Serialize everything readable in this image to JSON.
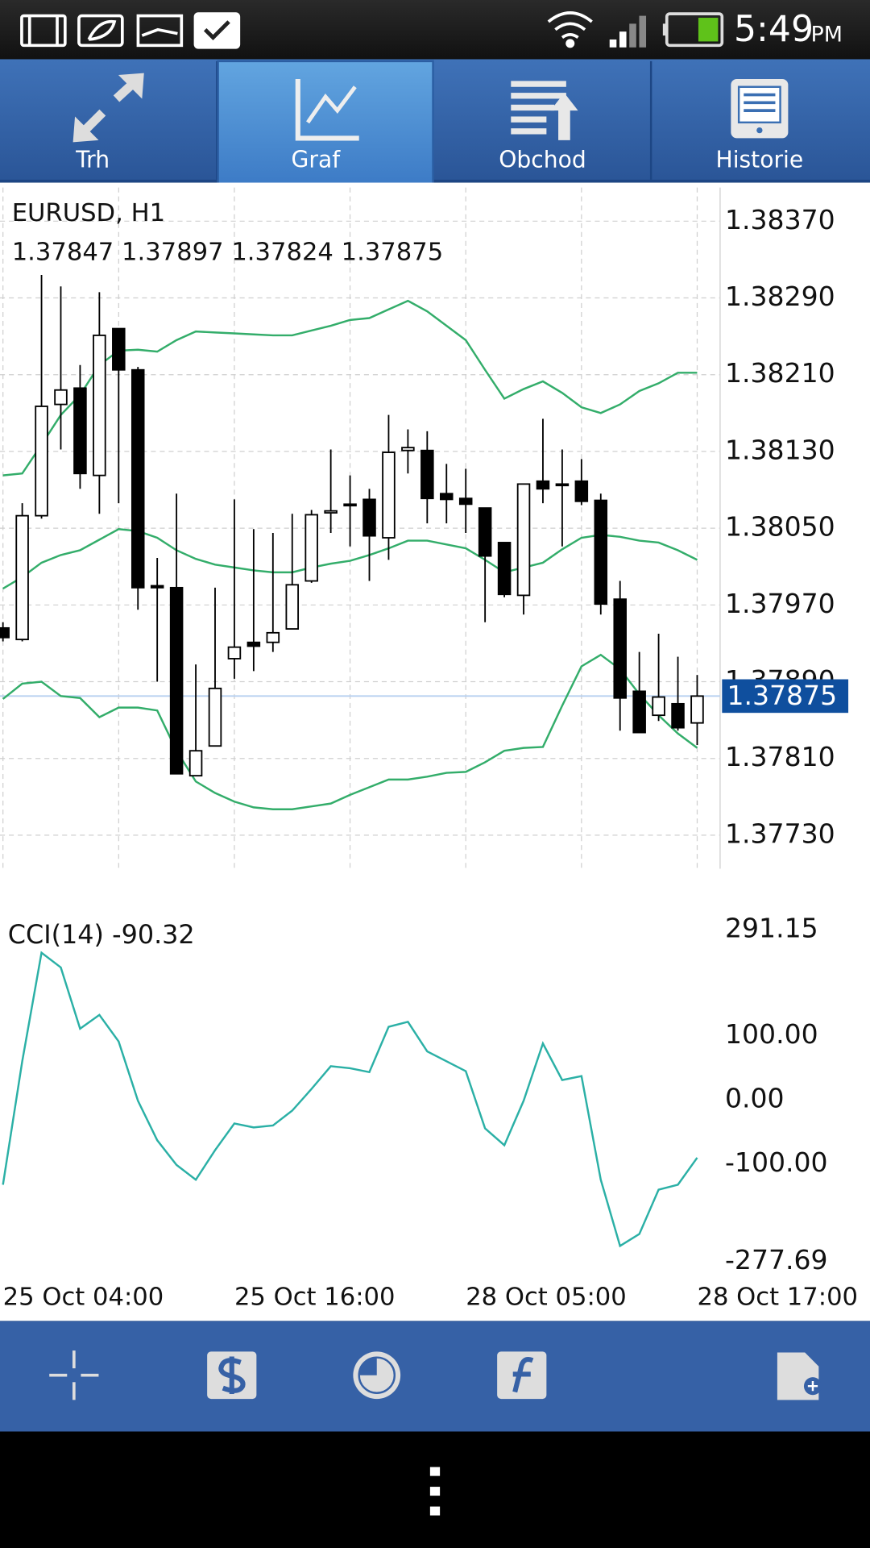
{
  "status_bar": {
    "time": "5:49",
    "ampm": "PM"
  },
  "tabs": [
    "Trh",
    "Graf",
    "Obchod",
    "Historie"
  ],
  "chart_data": [
    {
      "type": "candlestick",
      "title": "EURUSD, H1",
      "categories": [
        "25 Oct 04:00",
        null,
        null,
        null,
        null,
        null,
        null,
        null,
        null,
        null,
        null,
        null,
        "25 Oct 16:00",
        null,
        null,
        null,
        null,
        null,
        null,
        null,
        null,
        null,
        null,
        null,
        "28 Oct 05:00",
        null,
        null,
        null,
        null,
        null,
        null,
        null,
        null,
        null,
        null,
        null,
        "28 Oct 17:00"
      ],
      "open": [
        1.37946,
        1.37934,
        1.38063,
        1.38179,
        1.38196,
        1.38105,
        1.38258,
        1.38215,
        1.3799,
        1.37988,
        1.37792,
        1.37823,
        1.37914,
        1.37931,
        1.37931,
        1.37945,
        1.37995,
        1.38066,
        1.38074,
        1.3808,
        1.3804,
        1.38131,
        1.38131,
        1.38086,
        1.38081,
        1.38071,
        1.38035,
        1.3798,
        1.38099,
        1.38096,
        1.38099,
        1.38079,
        1.37976,
        1.3788,
        1.37855,
        1.37867,
        1.37847
      ],
      "high": [
        1.37952,
        1.38076,
        1.38314,
        1.38302,
        1.3822,
        1.38296,
        1.38258,
        1.38218,
        1.38019,
        1.38086,
        1.37908,
        1.37988,
        1.3808,
        1.38049,
        1.38045,
        1.38065,
        1.38069,
        1.38132,
        1.38105,
        1.38091,
        1.38168,
        1.38153,
        1.38151,
        1.38117,
        1.38112,
        1.38071,
        1.38035,
        1.38096,
        1.38164,
        1.38132,
        1.38122,
        1.38086,
        1.37995,
        1.37921,
        1.3794,
        1.37916,
        1.37897
      ],
      "low": [
        1.37932,
        1.37932,
        1.3806,
        1.38132,
        1.38091,
        1.38065,
        1.38076,
        1.37965,
        1.3789,
        1.37794,
        1.37792,
        1.37823,
        1.37893,
        1.37901,
        1.37921,
        1.37945,
        1.37993,
        1.38045,
        1.38031,
        1.37995,
        1.38017,
        1.38107,
        1.38055,
        1.38055,
        1.38045,
        1.37952,
        1.37978,
        1.3796,
        1.38076,
        1.38031,
        1.38074,
        1.3796,
        1.37839,
        1.37837,
        1.37849,
        1.37839,
        1.37824
      ],
      "close": [
        1.37936,
        1.38063,
        1.38177,
        1.38194,
        1.38107,
        1.38251,
        1.38215,
        1.37988,
        1.37988,
        1.37794,
        1.37818,
        1.37883,
        1.37926,
        1.37927,
        1.37941,
        1.37991,
        1.38064,
        1.38068,
        1.38075,
        1.38042,
        1.38129,
        1.38134,
        1.38081,
        1.3808,
        1.38075,
        1.38021,
        1.37981,
        1.38096,
        1.38091,
        1.38095,
        1.38078,
        1.37971,
        1.37873,
        1.37837,
        1.37874,
        1.37842,
        1.37875
      ],
      "up_color": "#ffffff",
      "down_color": "#000000",
      "bands": {
        "color": "#33ad6a",
        "upper": [
          1.38105,
          1.38107,
          1.38137,
          1.38168,
          1.38189,
          1.3822,
          1.38235,
          1.38236,
          1.38234,
          1.38246,
          1.38255,
          1.38254,
          1.38253,
          1.38252,
          1.38251,
          1.38251,
          1.38256,
          1.38261,
          1.38267,
          1.38269,
          1.38278,
          1.38287,
          1.38276,
          1.38261,
          1.38246,
          1.38215,
          1.38185,
          1.38195,
          1.38203,
          1.38191,
          1.38176,
          1.3817,
          1.38179,
          1.38193,
          1.38201,
          1.38212,
          1.38212
        ],
        "middle": [
          1.37987,
          1.37999,
          1.38014,
          1.38022,
          1.38027,
          1.38038,
          1.38049,
          1.38047,
          1.3804,
          1.38027,
          1.38018,
          1.38012,
          1.38009,
          1.38006,
          1.38004,
          1.38004,
          1.38009,
          1.38013,
          1.38016,
          1.38022,
          1.38029,
          1.38037,
          1.38037,
          1.38033,
          1.38029,
          1.38017,
          1.38004,
          1.38009,
          1.38014,
          1.38028,
          1.3804,
          1.38043,
          1.38041,
          1.38037,
          1.38035,
          1.38027,
          1.38017
        ],
        "lower": [
          1.37872,
          1.37888,
          1.3789,
          1.37875,
          1.37873,
          1.37853,
          1.37863,
          1.37863,
          1.3786,
          1.37818,
          1.37786,
          1.37774,
          1.37765,
          1.37759,
          1.37757,
          1.37757,
          1.3776,
          1.37763,
          1.37772,
          1.3778,
          1.37788,
          1.37788,
          1.37791,
          1.37795,
          1.37796,
          1.37806,
          1.37818,
          1.37821,
          1.37822,
          1.37865,
          1.37906,
          1.37918,
          1.37903,
          1.37877,
          1.37855,
          1.37836,
          1.37821
        ]
      },
      "last_price_color": "#0f4f9e",
      "ylim": [
        1.37695,
        1.38405
      ],
      "yticks": [
        {
          "value": 1.3837,
          "label": "1.38370"
        },
        {
          "value": 1.3829,
          "label": "1.38290"
        },
        {
          "value": 1.3821,
          "label": "1.38210"
        },
        {
          "value": 1.3813,
          "label": "1.38130"
        },
        {
          "value": 1.3805,
          "label": "1.38050"
        },
        {
          "value": 1.3797,
          "label": "1.37970"
        },
        {
          "value": 1.3789,
          "label": "1.37890"
        },
        {
          "value": 1.3781,
          "label": "1.37810"
        },
        {
          "value": 1.3773,
          "label": "1.37730"
        }
      ],
      "grid": true
    },
    {
      "type": "line",
      "title": "CCI(14)",
      "values": [
        -132.3,
        60,
        229.2,
        206.2,
        110.8,
        132.3,
        90.8,
        -1.5,
        -63.1,
        -101.5,
        -124.6,
        -78.5,
        -36.9,
        -43.1,
        -40,
        -16.9,
        16.9,
        52.3,
        49.2,
        43.1,
        113.8,
        121.5,
        75.4,
        60,
        44.6,
        -44.6,
        -70.8,
        -1.5,
        87.7,
        30.8,
        36.9,
        -124.6,
        -227.7,
        -209.2,
        -140,
        -132.3,
        -90.32
      ],
      "color": "#2bb0a6",
      "ylim": [
        -277.69,
        291.15
      ],
      "yticks": [
        291.15,
        {
          "value": 100,
          "label": "100.00"
        },
        {
          "value": 0,
          "label": "0.00"
        },
        {
          "value": -100,
          "label": "-100.00"
        },
        -277.69
      ],
      "grid": false
    }
  ]
}
